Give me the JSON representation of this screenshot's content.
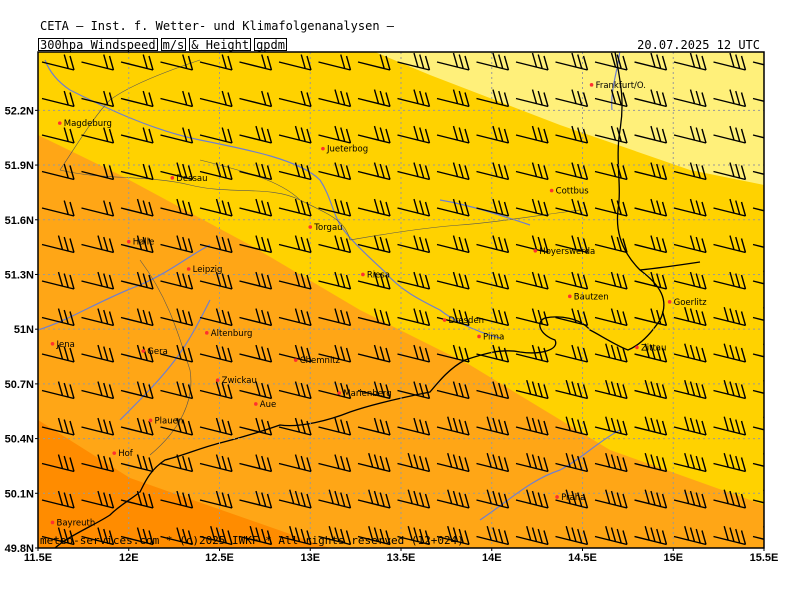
{
  "header": {
    "institute": "CETA – Inst. f. Wetter- und Klimafolgenanalysen –",
    "product_parts": [
      "300hpa Windspeed",
      "m/s",
      "& Height",
      "gpdm"
    ],
    "valid_time": "20.07.2025 12 UTC"
  },
  "footer": {
    "copyright": "meteo-services.com * (c)2025 IWKF * All rights reserved (12+024)"
  },
  "axes": {
    "lon_labels": [
      "11.5E",
      "12E",
      "12.5E",
      "13E",
      "13.5E",
      "14E",
      "14.5E",
      "15E",
      "15.5E"
    ],
    "lat_labels": [
      "52.2N",
      "51.9N",
      "51.6N",
      "51.3N",
      "51N",
      "50.7N",
      "50.4N",
      "50.1N",
      "49.8N"
    ],
    "lon_values": [
      11.5,
      12,
      12.5,
      13,
      13.5,
      14,
      14.5,
      15,
      15.5
    ],
    "lat_values": [
      52.2,
      51.9,
      51.6,
      51.3,
      51.0,
      50.7,
      50.4,
      50.1,
      49.8
    ]
  },
  "colors": {
    "band_light": "#fff07a",
    "band_mid": "#ffd200",
    "band_orange": "#ffa616",
    "band_dark": "#ff8c00",
    "border": "#000000",
    "river": "#6f7fd0",
    "city_dot": "#ff3030",
    "grid": "#999999"
  },
  "cities": [
    {
      "name": "Frankfurt/O.",
      "lon": 14.55,
      "lat": 52.34
    },
    {
      "name": "Magdeburg",
      "lon": 11.62,
      "lat": 52.13
    },
    {
      "name": "Jueterbog",
      "lon": 13.07,
      "lat": 51.99
    },
    {
      "name": "Dessau",
      "lon": 12.24,
      "lat": 51.83
    },
    {
      "name": "Cottbus",
      "lon": 14.33,
      "lat": 51.76
    },
    {
      "name": "Torgau",
      "lon": 13.0,
      "lat": 51.56
    },
    {
      "name": "Halle",
      "lon": 12.0,
      "lat": 51.48
    },
    {
      "name": "Hoyerswerda",
      "lon": 14.24,
      "lat": 51.43
    },
    {
      "name": "Leipzig",
      "lon": 12.33,
      "lat": 51.33
    },
    {
      "name": "Riesa",
      "lon": 13.29,
      "lat": 51.3
    },
    {
      "name": "Bautzen",
      "lon": 14.43,
      "lat": 51.18
    },
    {
      "name": "Goerlitz",
      "lon": 14.98,
      "lat": 51.15
    },
    {
      "name": "Dresden",
      "lon": 13.74,
      "lat": 51.05
    },
    {
      "name": "Pirna",
      "lon": 13.93,
      "lat": 50.96
    },
    {
      "name": "Altenburg",
      "lon": 12.43,
      "lat": 50.98
    },
    {
      "name": "Jena",
      "lon": 11.58,
      "lat": 50.92
    },
    {
      "name": "Gera",
      "lon": 12.08,
      "lat": 50.88
    },
    {
      "name": "Zittau",
      "lon": 14.8,
      "lat": 50.9
    },
    {
      "name": "Chemnitz",
      "lon": 12.92,
      "lat": 50.83
    },
    {
      "name": "Zwickau",
      "lon": 12.49,
      "lat": 50.72
    },
    {
      "name": "Marienberg",
      "lon": 13.16,
      "lat": 50.65
    },
    {
      "name": "Aue",
      "lon": 12.7,
      "lat": 50.59
    },
    {
      "name": "Plauen",
      "lon": 12.12,
      "lat": 50.5
    },
    {
      "name": "Hof",
      "lon": 11.92,
      "lat": 50.32
    },
    {
      "name": "Praha",
      "lon": 14.36,
      "lat": 50.08
    },
    {
      "name": "Bayreuth",
      "lon": 11.58,
      "lat": 49.94
    }
  ]
}
